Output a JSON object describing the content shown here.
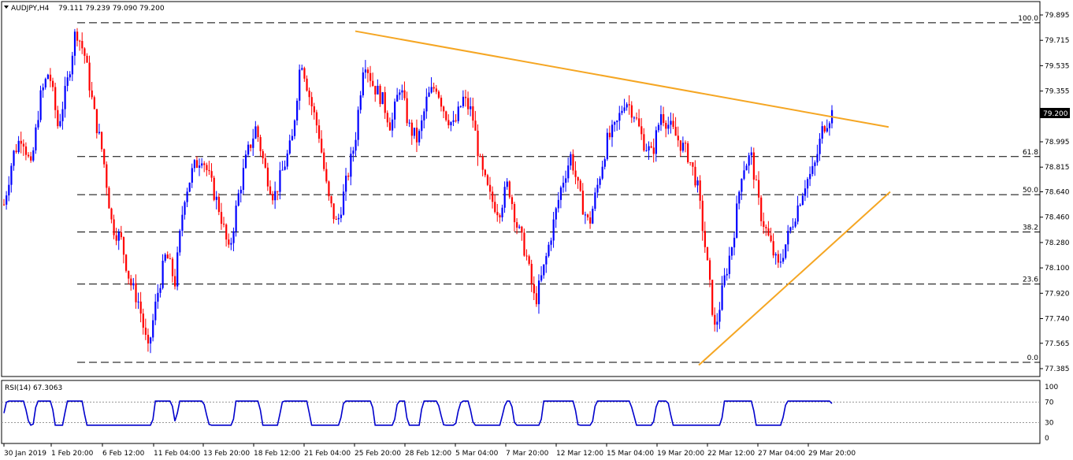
{
  "header": {
    "symbol": "AUDJPY,H4",
    "ohlc": "79.111 79.239 79.090 79.200"
  },
  "rsi_panel": {
    "label": "RSI(14) 67.3063",
    "levels": [
      100,
      70,
      30,
      0
    ],
    "color": "#0000cc"
  },
  "colors": {
    "bull": "#0000ff",
    "bear": "#ff0000",
    "trendline": "#f5a623",
    "fib": "#000000"
  },
  "chart_data": {
    "type": "candlestick",
    "ylim": [
      77.385,
      79.99
    ],
    "y_ticks": [
      79.895,
      79.715,
      79.535,
      79.355,
      79.175,
      78.995,
      78.815,
      78.64,
      78.46,
      78.28,
      78.1,
      77.92,
      77.74,
      77.565,
      77.385
    ],
    "y_tick_labels": [
      "79.895",
      "79.715",
      "79.535",
      "79.355",
      "",
      "78.995",
      "78.815",
      "78.640",
      "78.460",
      "78.280",
      "78.100",
      "77.920",
      "77.740",
      "77.565",
      "77.385"
    ],
    "current_price": "79.200",
    "x_labels": [
      "30 Jan 2019",
      "1 Feb 20:00",
      "6 Feb 12:00",
      "11 Feb 04:00",
      "13 Feb 20:00",
      "18 Feb 12:00",
      "21 Feb 04:00",
      "25 Feb 20:00",
      "28 Feb 12:00",
      "5 Mar 04:00",
      "7 Mar 20:00",
      "12 Mar 12:00",
      "15 Mar 04:00",
      "19 Mar 20:00",
      "22 Mar 12:00",
      "27 Mar 04:00",
      "29 Mar 20:00"
    ],
    "fib_levels": [
      {
        "label": "100.0",
        "price": 79.84
      },
      {
        "label": "61.8",
        "price": 78.89
      },
      {
        "label": "50.0",
        "price": 78.62
      },
      {
        "label": "38.2",
        "price": 78.355
      },
      {
        "label": "23.6",
        "price": 77.985
      },
      {
        "label": "0.0",
        "price": 77.43
      }
    ],
    "trendlines": [
      {
        "name": "resistance",
        "from": [
          79.78
        ],
        "to": [
          79.1
        ]
      },
      {
        "name": "support",
        "from": [
          77.41
        ],
        "to": [
          78.64
        ]
      }
    ],
    "price_path": [
      78.55,
      78.9,
      79.05,
      78.8,
      79.3,
      79.5,
      79.1,
      79.4,
      79.8,
      79.6,
      79.2,
      78.9,
      78.4,
      78.3,
      78.0,
      77.85,
      77.5,
      77.9,
      78.2,
      78.0,
      78.6,
      78.8,
      78.9,
      78.7,
      78.5,
      78.2,
      78.6,
      78.9,
      79.1,
      78.8,
      78.6,
      78.8,
      79.0,
      79.6,
      79.3,
      79.05,
      78.6,
      78.4,
      78.7,
      79.0,
      79.6,
      79.4,
      79.3,
      79.1,
      79.4,
      79.1,
      79.0,
      79.3,
      79.4,
      79.2,
      79.1,
      79.3,
      79.2,
      78.8,
      78.6,
      78.5,
      78.7,
      78.4,
      78.2,
      77.85,
      78.1,
      78.4,
      78.7,
      78.9,
      78.6,
      78.4,
      78.7,
      79.0,
      79.1,
      79.3,
      79.2,
      79.0,
      78.9,
      79.2,
      79.1,
      79.0,
      78.9,
      78.7,
      78.2,
      77.65,
      78.0,
      78.3,
      78.8,
      78.9,
      78.5,
      78.3,
      78.1,
      78.3,
      78.5,
      78.7,
      78.8,
      79.1,
      79.2
    ]
  }
}
